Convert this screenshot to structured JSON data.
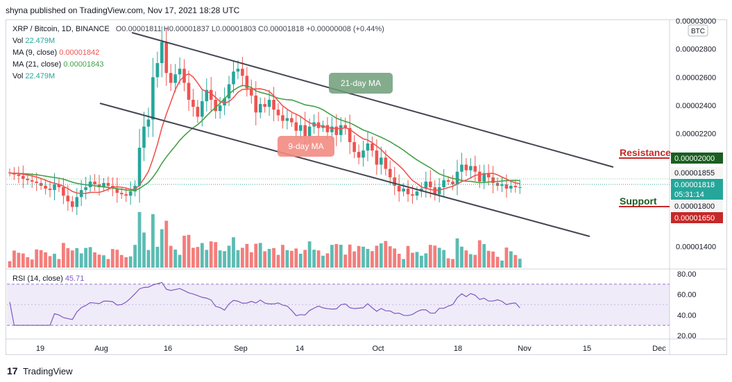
{
  "header": {
    "publisher": "shyna published on TradingView.com, Nov 17, 2021 18:28 UTC"
  },
  "legend": {
    "symbol": "XRP / Bitcoin, 1D, BINANCE",
    "ohlc": "O0.00001811  H0.00001837  L0.00001803  C0.00001818  +0.00000008 (+0.44%)",
    "vol_label": "Vol",
    "vol_value": "22.479M",
    "ma9_label": "MA (9, close)",
    "ma9_value": "0.00001842",
    "ma21_label": "MA (21, close)",
    "ma21_value": "0.00001843",
    "vol2_label": "Vol",
    "vol2_value": "22.479M"
  },
  "price_axis": {
    "currency": "BTC",
    "ticks": [
      "0.00003000",
      "0.00002800",
      "0.00002600",
      "0.00002400",
      "0.00002200",
      "0.00001400"
    ]
  },
  "price_tags": {
    "resistance_value": "0.00002000",
    "upper": "0.00001855",
    "current_price": "0.00001818",
    "countdown": "05:31:14",
    "support_value": "0.00001800",
    "lower": "0.00001650"
  },
  "annotations": {
    "ma21": "21-day MA",
    "ma9": "9-day MA",
    "resistance": "Resistance",
    "support": "Support"
  },
  "rsi": {
    "label": "RSI (14, close)",
    "value": "45.71",
    "ticks": [
      "80.00",
      "60.00",
      "40.00",
      "20.00"
    ]
  },
  "time_axis": {
    "ticks": [
      "19",
      "Aug",
      "16",
      "Sep",
      "14",
      "Oct",
      "18",
      "Nov",
      "15",
      "Dec"
    ]
  },
  "colors": {
    "up": "#26a69a",
    "down": "#ef5350",
    "ma9": "#ef5350",
    "ma21": "#43a047",
    "rsi": "#7e57c2",
    "channel": "#434651"
  },
  "footer": {
    "brand": "TradingView"
  },
  "chart_data": {
    "type": "candlestick",
    "title": "XRP / Bitcoin, 1D, BINANCE",
    "ylim": [
      1.25e-05,
      3e-05
    ],
    "closes": [
      1.92e-05,
      1.91e-05,
      1.9e-05,
      1.88e-05,
      1.87e-05,
      1.86e-05,
      1.85e-05,
      1.83e-05,
      1.81e-05,
      1.8e-05,
      1.84e-05,
      1.82e-05,
      1.76e-05,
      1.72e-05,
      1.68e-05,
      1.75e-05,
      1.8e-05,
      1.82e-05,
      1.86e-05,
      1.84e-05,
      1.82e-05,
      1.85e-05,
      1.83e-05,
      1.81e-05,
      1.78e-05,
      1.77e-05,
      1.76e-05,
      1.79e-05,
      1.83e-05,
      2.1e-05,
      2.25e-05,
      2.3e-05,
      2.6e-05,
      2.7e-05,
      2.85e-05,
      2.63e-05,
      2.56e-05,
      2.62e-05,
      2.66e-05,
      2.56e-05,
      2.44e-05,
      2.39e-05,
      2.32e-05,
      2.43e-05,
      2.51e-05,
      2.44e-05,
      2.36e-05,
      2.4e-05,
      2.45e-05,
      2.55e-05,
      2.64e-05,
      2.66e-05,
      2.61e-05,
      2.52e-05,
      2.47e-05,
      2.35e-05,
      2.41e-05,
      2.39e-05,
      2.44e-05,
      2.37e-05,
      2.33e-05,
      2.29e-05,
      2.31e-05,
      2.28e-05,
      2.22e-05,
      2.26e-05,
      2.18e-05,
      2.25e-05,
      2.28e-05,
      2.24e-05,
      2.26e-05,
      2.21e-05,
      2.25e-05,
      2.19e-05,
      2.26e-05,
      2.24e-05,
      2.14e-05,
      2.07e-05,
      2.03e-05,
      2.08e-05,
      2.13e-05,
      2.08e-05,
      1.98e-05,
      2.03e-05,
      1.95e-05,
      1.89e-05,
      1.83e-05,
      1.79e-05,
      1.81e-05,
      1.77e-05,
      1.76e-05,
      1.79e-05,
      1.81e-05,
      1.86e-05,
      1.82e-05,
      1.77e-05,
      1.82e-05,
      1.87e-05,
      1.86e-05,
      1.84e-05,
      1.93e-05,
      1.98e-05,
      1.94e-05,
      1.97e-05,
      1.93e-05,
      1.86e-05,
      1.92e-05,
      1.89e-05,
      1.85e-05,
      1.83e-05,
      1.84e-05,
      1.81e-05,
      1.83e-05,
      1.82e-05,
      1.82e-05
    ]
  }
}
